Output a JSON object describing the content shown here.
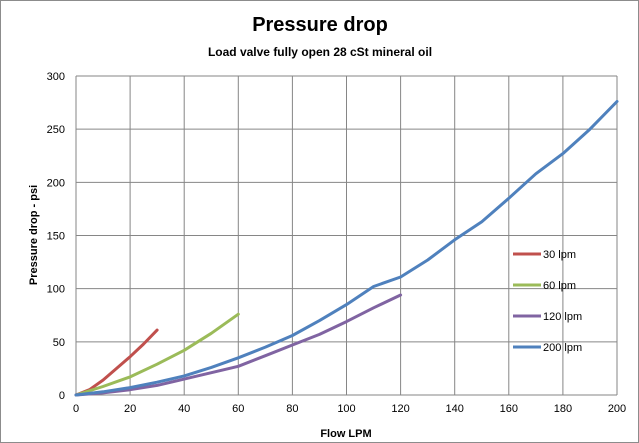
{
  "chart_data": {
    "type": "line",
    "title": "Pressure drop",
    "subtitle": "Load valve fully open 28 cSt mineral oil",
    "xlabel": "Flow LPM",
    "ylabel": "Pressure drop - psi",
    "xlim": [
      0,
      200
    ],
    "ylim": [
      0,
      300
    ],
    "x_ticks": [
      "0",
      "20",
      "40",
      "60",
      "80",
      "100",
      "120",
      "140",
      "160",
      "180",
      "200"
    ],
    "y_ticks": [
      "0",
      "50",
      "100",
      "150",
      "200",
      "250",
      "300"
    ],
    "grid": true,
    "legend_position": "right",
    "series": [
      {
        "name": "30 lpm",
        "color": "#c0504d",
        "points": [
          [
            0,
            0
          ],
          [
            5,
            5
          ],
          [
            10,
            14
          ],
          [
            15,
            25
          ],
          [
            20,
            36
          ],
          [
            25,
            48
          ],
          [
            30,
            61
          ]
        ]
      },
      {
        "name": "60 lpm",
        "color": "#9bbb59",
        "points": [
          [
            0,
            0
          ],
          [
            10,
            8
          ],
          [
            20,
            17
          ],
          [
            30,
            29
          ],
          [
            40,
            42
          ],
          [
            50,
            58
          ],
          [
            60,
            76
          ]
        ]
      },
      {
        "name": "120 lpm",
        "color": "#8064a2",
        "points": [
          [
            0,
            0
          ],
          [
            10,
            2
          ],
          [
            20,
            5
          ],
          [
            30,
            9
          ],
          [
            40,
            15
          ],
          [
            50,
            21
          ],
          [
            60,
            27
          ],
          [
            70,
            37
          ],
          [
            80,
            47
          ],
          [
            90,
            57
          ],
          [
            100,
            69
          ],
          [
            110,
            82
          ],
          [
            120,
            94
          ]
        ]
      },
      {
        "name": "200 lpm",
        "color": "#4f81bd",
        "points": [
          [
            0,
            0
          ],
          [
            10,
            3
          ],
          [
            20,
            7
          ],
          [
            30,
            12
          ],
          [
            40,
            18
          ],
          [
            50,
            26
          ],
          [
            60,
            35
          ],
          [
            70,
            45
          ],
          [
            80,
            56
          ],
          [
            90,
            70
          ],
          [
            100,
            85
          ],
          [
            110,
            102
          ],
          [
            120,
            111
          ],
          [
            130,
            127
          ],
          [
            140,
            146
          ],
          [
            150,
            163
          ],
          [
            160,
            185
          ],
          [
            170,
            208
          ],
          [
            180,
            227
          ],
          [
            190,
            250
          ],
          [
            200,
            276
          ]
        ]
      }
    ]
  }
}
